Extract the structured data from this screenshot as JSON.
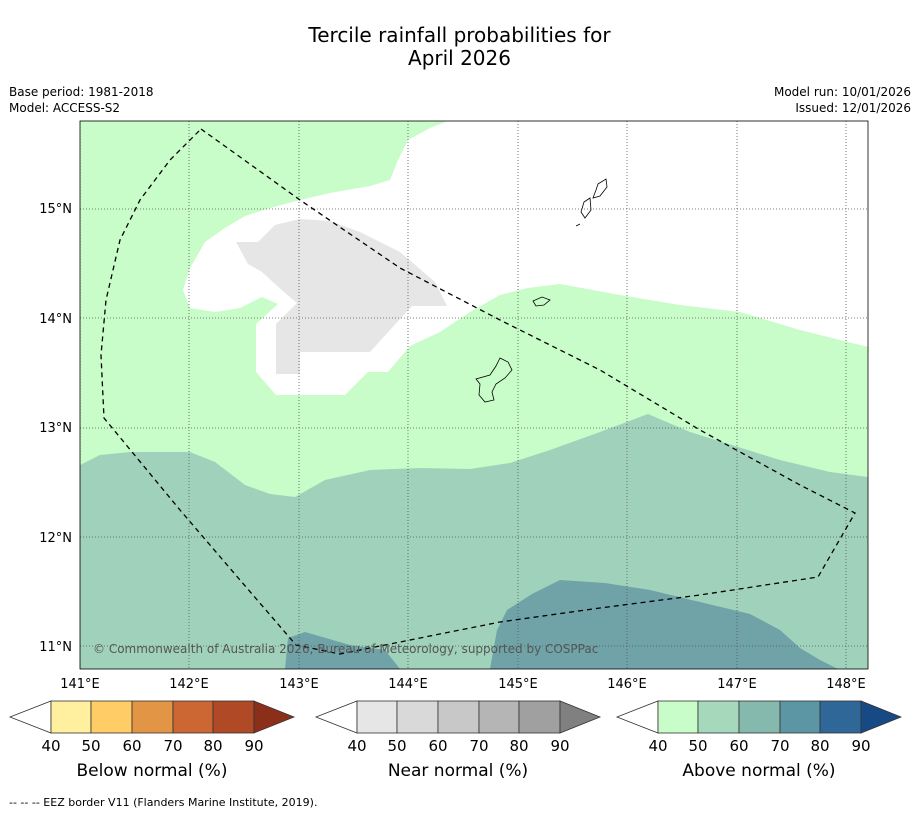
{
  "title_line1": "Tercile rainfall probabilities for",
  "title_line2": "April 2026",
  "base_period": "Base period: 1981-2018",
  "model": "Model: ACCESS-S2",
  "model_run": "Model run: 10/01/2026",
  "issued": "Issued: 12/01/2026",
  "copyright": "© Commonwealth of Australia 2026, Bureau of Meteorology, supported by COSPPac",
  "footnote": "--  --  -- EEZ border V11 (Flanders Marine Institute, 2019).",
  "lat_labels": [
    "15°N",
    "14°N",
    "13°N",
    "12°N",
    "11°N"
  ],
  "lon_labels": [
    "141°E",
    "142°E",
    "143°E",
    "144°E",
    "145°E",
    "146°E",
    "147°E",
    "148°E"
  ],
  "colorbars": [
    {
      "label": "Below normal (%)",
      "ticks": [
        "40",
        "50",
        "60",
        "70",
        "80",
        "90"
      ],
      "colors": [
        "#ffffff",
        "#fff0a0",
        "#ffcc66",
        "#e29545",
        "#cc6633",
        "#b04a26",
        "#8c2f1a"
      ]
    },
    {
      "label": "Near normal (%)",
      "ticks": [
        "40",
        "50",
        "60",
        "70",
        "80",
        "90"
      ],
      "colors": [
        "#ffffff",
        "#e6e6e6",
        "#d9d9d9",
        "#c8c8c8",
        "#b5b5b5",
        "#a0a0a0",
        "#808080"
      ]
    },
    {
      "label": "Above normal (%)",
      "ticks": [
        "40",
        "50",
        "60",
        "70",
        "80",
        "90"
      ],
      "colors": [
        "#ffffff",
        "#c8fcc8",
        "#a6d8bb",
        "#86b9ad",
        "#5c96a5",
        "#2f6799",
        "#174a85"
      ]
    }
  ],
  "colors": {
    "above_40": "#c8fcc8",
    "above_50": "#a0d2bb",
    "above_60": "#6fa3a7",
    "near_40": "#e6e6e6"
  }
}
